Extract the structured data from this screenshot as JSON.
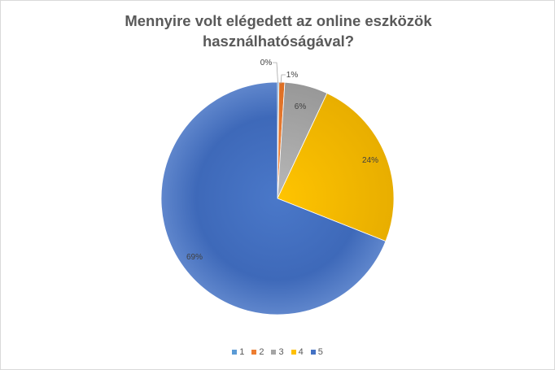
{
  "chart_data": {
    "type": "pie",
    "title_lines": [
      "Mennyire volt elégedett az online eszközök",
      "használhatóságával?"
    ],
    "categories": [
      "1",
      "2",
      "3",
      "4",
      "5"
    ],
    "values": [
      0.2,
      0.8,
      6,
      24,
      69
    ],
    "labels": [
      "0%",
      "1%",
      "6%",
      "24%",
      "69%"
    ],
    "colors": [
      "#5b9bd5",
      "#ed7d31",
      "#a5a5a5",
      "#ffc000",
      "#4472c4"
    ],
    "legend_position": "bottom"
  }
}
